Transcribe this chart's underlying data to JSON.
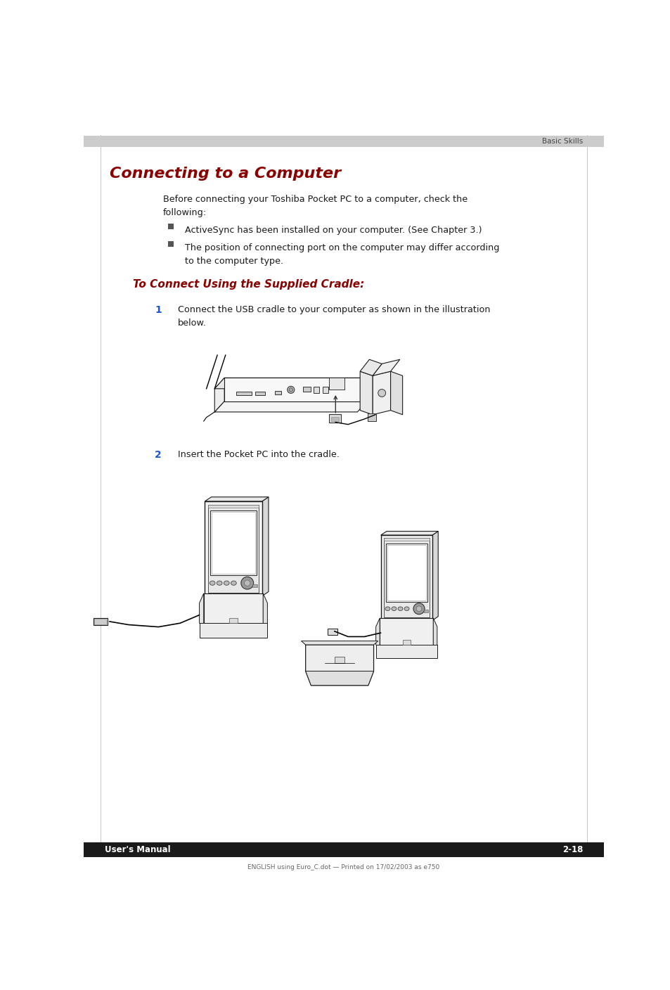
{
  "page_bg": "#ffffff",
  "header_bg": "#cccccc",
  "header_text": "Basic Skills",
  "header_text_color": "#444444",
  "footer_bg": "#1a1a1a",
  "footer_left_text": "User's Manual",
  "footer_right_text": "2-18",
  "footer_text_color": "#ffffff",
  "bottom_note": "ENGLISH using Euro_C.dot — Printed on 17/02/2003 as e750",
  "title": "Connecting to a Computer",
  "title_color": "#8b0000",
  "section_title": "To Connect Using the Supplied Cradle:",
  "section_title_color": "#8b0000",
  "body_intro_line1": "Before connecting your Toshiba Pocket PC to a computer, check the",
  "body_intro_line2": "following:",
  "bullet1": "ActiveSync has been installed on your computer. (See Chapter 3.)",
  "bullet2_line1": "The position of connecting port on the computer may differ according",
  "bullet2_line2": "to the computer type.",
  "step1_num": "1",
  "step1_line1": "Connect the USB cradle to your computer as shown in the illustration",
  "step1_line2": "below.",
  "step2_num": "2",
  "step2_text": "Insert the Pocket PC into the cradle.",
  "text_color": "#1a1a1a",
  "step_num_color": "#1a56d4",
  "line_color": "#999999"
}
